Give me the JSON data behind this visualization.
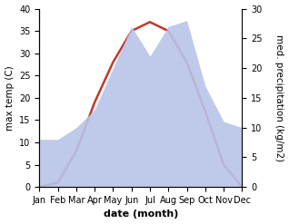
{
  "months": [
    "Jan",
    "Feb",
    "Mar",
    "Apr",
    "May",
    "Jun",
    "Jul",
    "Aug",
    "Sep",
    "Oct",
    "Nov",
    "Dec"
  ],
  "max_temp": [
    0,
    1,
    8,
    19,
    28,
    35,
    37,
    35,
    28,
    17,
    5,
    0
  ],
  "precipitation": [
    8,
    8,
    10,
    13,
    20,
    27,
    22,
    27,
    28,
    17,
    11,
    10
  ],
  "temp_ylim": [
    0,
    40
  ],
  "precip_ylim": [
    0,
    30
  ],
  "temp_color": "#c0392b",
  "precip_fill_color": "#b8c4e8",
  "xlabel": "date (month)",
  "ylabel_left": "max temp (C)",
  "ylabel_right": "med. precipitation (kg/m2)",
  "bg_color": "#ffffff",
  "ylabel_fontsize": 7.5,
  "tick_fontsize": 7,
  "xlabel_fontsize": 8
}
